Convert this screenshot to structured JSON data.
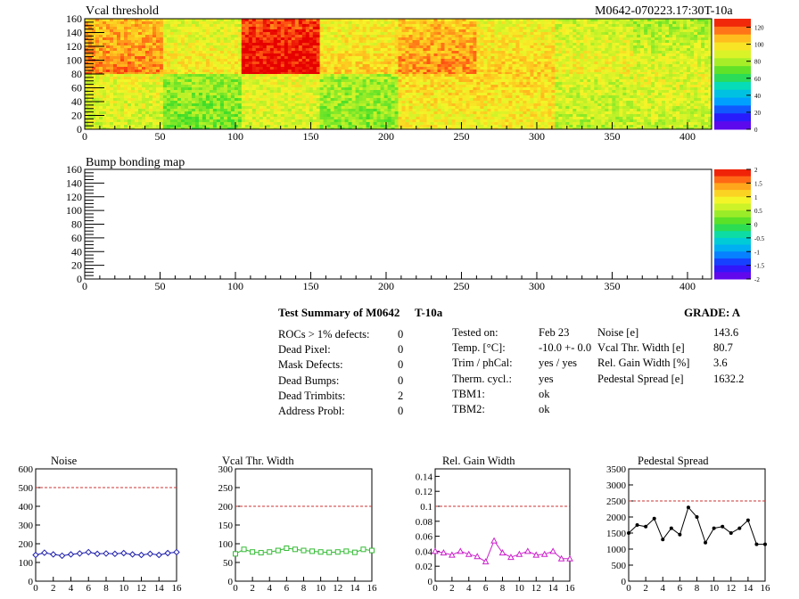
{
  "header": {
    "heatmap_title": "Vcal threshold",
    "module_id": "M0642-070223.17:30T-10a",
    "bump_title": "Bump bonding map"
  },
  "heatmap_x_ticks": [
    "0",
    "50",
    "100",
    "150",
    "200",
    "250",
    "300",
    "350",
    "400"
  ],
  "heatmap_y_ticks": [
    "0",
    "20",
    "40",
    "60",
    "80",
    "100",
    "120",
    "140",
    "160"
  ],
  "palette_top_labels": [
    "120",
    "100",
    "80",
    "60",
    "40",
    "20",
    "0"
  ],
  "palette_bottom_labels": [
    "2",
    "1.5",
    "1",
    "0.5",
    "0",
    "-0.5",
    "-1",
    "-1.5",
    "-2"
  ],
  "colors": {
    "threshold_line": "#cc3333",
    "noise": "#1a1aaa",
    "vcal_width": "#33bb33",
    "gain_width": "#cc22cc",
    "pedestal": "#000000"
  },
  "summary": {
    "title": "Test Summary of M0642",
    "temp_tag": "T-10a",
    "grade": "GRADE:  A",
    "col1": [
      {
        "label": "ROCs > 1% defects:",
        "value": "0"
      },
      {
        "label": "Dead Pixel:",
        "value": "0"
      },
      {
        "label": "Mask Defects:",
        "value": "0"
      },
      {
        "label": "Dead Bumps:",
        "value": "0"
      },
      {
        "label": "Dead Trimbits:",
        "value": "2"
      },
      {
        "label": "Address Probl:",
        "value": "0"
      }
    ],
    "col2": [
      {
        "label": "Tested on:",
        "value": "Feb 23"
      },
      {
        "label": "Temp. [°C]:",
        "value": "-10.0 +- 0.0"
      },
      {
        "label": "Trim / phCal:",
        "value": "yes / yes"
      },
      {
        "label": "Therm. cycl.:",
        "value": "yes"
      },
      {
        "label": "TBM1:",
        "value": "ok"
      },
      {
        "label": "TBM2:",
        "value": "ok"
      }
    ],
    "col3": [
      {
        "label": "Noise [e]",
        "value": "143.6"
      },
      {
        "label": "Vcal Thr. Width [e]",
        "value": "80.7"
      },
      {
        "label": "Rel. Gain Width [%]",
        "value": "3.6"
      },
      {
        "label": "Pedestal Spread [e]",
        "value": "1632.2"
      }
    ]
  },
  "chart_data": [
    {
      "type": "heatmap",
      "title": "Vcal threshold",
      "xlim": [
        0,
        416
      ],
      "ylim": [
        0,
        160
      ],
      "zlim": [
        0,
        130
      ],
      "note": "16 ROC blocks (8 per row), mean values per block",
      "blocks_top": [
        105,
        88,
        122,
        92,
        103,
        92,
        85,
        80
      ],
      "blocks_bottom": [
        92,
        78,
        92,
        80,
        100,
        100,
        88,
        90
      ]
    },
    {
      "type": "heatmap",
      "title": "Bump bonding map",
      "xlim": [
        0,
        416
      ],
      "ylim": [
        0,
        160
      ],
      "zlim": [
        -2,
        2
      ],
      "values": []
    },
    {
      "type": "line",
      "title": "Noise",
      "xlim": [
        0,
        16
      ],
      "ylim": [
        0,
        600
      ],
      "x": [
        0,
        1,
        2,
        3,
        4,
        5,
        6,
        7,
        8,
        9,
        10,
        11,
        12,
        13,
        14,
        15,
        16
      ],
      "values": [
        140,
        152,
        143,
        136,
        143,
        148,
        155,
        146,
        148,
        146,
        150,
        143,
        140,
        146,
        140,
        150,
        155
      ],
      "threshold": 500,
      "y_ticks": [
        "0",
        "100",
        "200",
        "300",
        "400",
        "500",
        "600"
      ],
      "x_ticks": [
        "0",
        "2",
        "4",
        "6",
        "8",
        "10",
        "12",
        "14",
        "16"
      ]
    },
    {
      "type": "line",
      "title": "Vcal Thr. Width",
      "xlim": [
        0,
        16
      ],
      "ylim": [
        0,
        300
      ],
      "x": [
        0,
        1,
        2,
        3,
        4,
        5,
        6,
        7,
        8,
        9,
        10,
        11,
        12,
        13,
        14,
        15,
        16
      ],
      "values": [
        73,
        85,
        78,
        76,
        78,
        82,
        88,
        85,
        82,
        80,
        78,
        77,
        78,
        80,
        77,
        85,
        82
      ],
      "threshold": 200,
      "y_ticks": [
        "0",
        "50",
        "100",
        "150",
        "200",
        "250",
        "300"
      ],
      "x_ticks": [
        "0",
        "2",
        "4",
        "6",
        "8",
        "10",
        "12",
        "14",
        "16"
      ]
    },
    {
      "type": "line",
      "title": "Rel. Gain Width",
      "xlim": [
        0,
        16
      ],
      "ylim": [
        0,
        0.15
      ],
      "x": [
        0,
        1,
        2,
        3,
        4,
        5,
        6,
        7,
        8,
        9,
        10,
        11,
        12,
        13,
        14,
        15,
        16
      ],
      "values": [
        0.04,
        0.038,
        0.035,
        0.04,
        0.036,
        0.033,
        0.026,
        0.054,
        0.038,
        0.032,
        0.036,
        0.04,
        0.035,
        0.036,
        0.04,
        0.03,
        0.03
      ],
      "threshold": 0.1,
      "y_ticks": [
        "0",
        "0.02",
        "0.04",
        "0.06",
        "0.08",
        "0.1",
        "0.12",
        "0.14"
      ],
      "x_ticks": [
        "0",
        "2",
        "4",
        "6",
        "8",
        "10",
        "12",
        "14",
        "16"
      ]
    },
    {
      "type": "line",
      "title": "Pedestal Spread",
      "xlim": [
        0,
        16
      ],
      "ylim": [
        0,
        3500
      ],
      "x": [
        0,
        1,
        2,
        3,
        4,
        5,
        6,
        7,
        8,
        9,
        10,
        11,
        12,
        13,
        14,
        15,
        16
      ],
      "values": [
        1500,
        1750,
        1700,
        1950,
        1300,
        1650,
        1450,
        2300,
        2000,
        1200,
        1650,
        1700,
        1500,
        1650,
        1900,
        1150,
        1150
      ],
      "threshold": 2500,
      "y_ticks": [
        "0",
        "500",
        "1000",
        "1500",
        "2000",
        "2500",
        "3000",
        "3500"
      ],
      "x_ticks": [
        "0",
        "2",
        "4",
        "6",
        "8",
        "10",
        "12",
        "14",
        "16"
      ]
    }
  ]
}
